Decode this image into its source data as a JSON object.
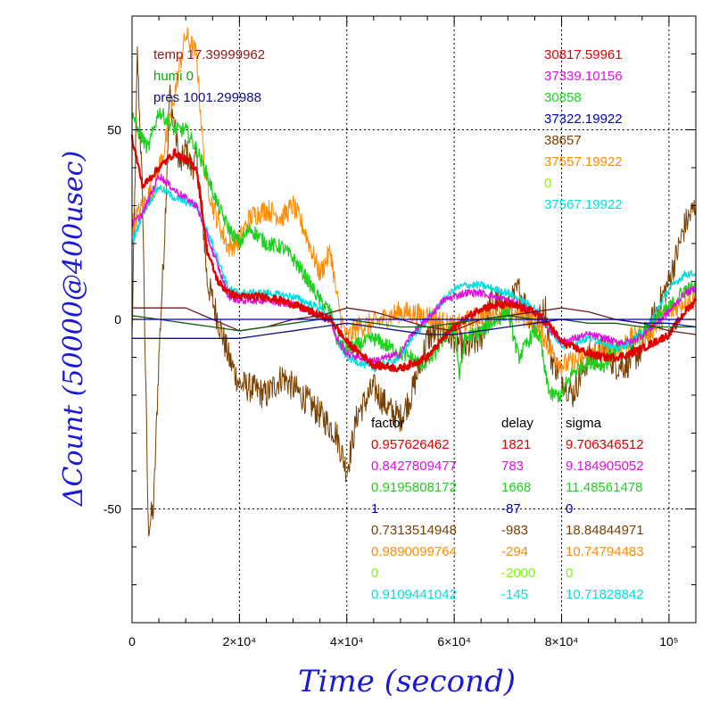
{
  "chart_data": {
    "type": "line",
    "title": "",
    "xlabel": "Time (second)",
    "ylabel": "ΔCount (50000@400usec)",
    "xlim": [
      0,
      105000
    ],
    "ylim": [
      -80,
      80
    ],
    "grid": true,
    "x_ticks": [
      {
        "value": 0,
        "label": "0"
      },
      {
        "value": 20000,
        "label": "2×10⁴"
      },
      {
        "value": 40000,
        "label": "4×10⁴"
      },
      {
        "value": 60000,
        "label": "6×10⁴"
      },
      {
        "value": 80000,
        "label": "8×10⁴"
      },
      {
        "value": 100000,
        "label": "10⁵"
      }
    ],
    "y_ticks": [
      {
        "value": 50,
        "label": "50"
      },
      {
        "value": 0,
        "label": "0"
      },
      {
        "value": -50,
        "label": "-50"
      }
    ],
    "env_labels": [
      {
        "text": "temp 17.39999962",
        "color": "#8b1a1a"
      },
      {
        "text": "humi 0",
        "color": "#10a010"
      },
      {
        "text": "pres 1001.299988",
        "color": "#101080"
      }
    ],
    "right_values": [
      {
        "text": "30817.59961",
        "color": "#e00000"
      },
      {
        "text": "37339.10156",
        "color": "#e010e0"
      },
      {
        "text": "30858",
        "color": "#20d020"
      },
      {
        "text": "37322.19922",
        "color": "#0000c0"
      },
      {
        "text": "38657",
        "color": "#7a4000"
      },
      {
        "text": "37557.19922",
        "color": "#ff8c00"
      },
      {
        "text": "0",
        "color": "#7cfc00"
      },
      {
        "text": "37567.19922",
        "color": "#00e0e0"
      }
    ],
    "table": {
      "headers": [
        "factor",
        "delay",
        "sigma"
      ],
      "rows": [
        {
          "factor": "0.957626462",
          "delay": "1821",
          "sigma": "9.706346512",
          "color": "#e00000"
        },
        {
          "factor": "0.8427809477",
          "delay": "783",
          "sigma": "9.184905052",
          "color": "#e010e0"
        },
        {
          "factor": "0.9195808172",
          "delay": "1668",
          "sigma": "11.48561478",
          "color": "#20d020"
        },
        {
          "factor": "1",
          "delay": "-87",
          "sigma": "0",
          "color": "#0000c0"
        },
        {
          "factor": "0.7313514948",
          "delay": "-983",
          "sigma": "18.84844971",
          "color": "#7a4000"
        },
        {
          "factor": "0.9890099764",
          "delay": "-294",
          "sigma": "10.74794483",
          "color": "#ff8c00"
        },
        {
          "factor": "0",
          "delay": "-2000",
          "sigma": "0",
          "color": "#7cfc00"
        },
        {
          "factor": "0.9109441042",
          "delay": "-145",
          "sigma": "10.71828842",
          "color": "#00e0e0"
        }
      ]
    },
    "series": [
      {
        "color": "#7a4000",
        "noise": 4,
        "x": [
          0,
          1000,
          2000,
          3000,
          4000,
          5000,
          6000,
          7000,
          8000,
          9000,
          10000,
          11000,
          12000,
          13000,
          14000,
          15000,
          17000,
          18000,
          20000,
          22000,
          25000,
          28000,
          30000,
          33000,
          35000,
          38000,
          40000,
          42000,
          45000,
          48000,
          50000,
          52000,
          55000,
          57000,
          60000,
          62000,
          65000,
          67000,
          70000,
          72000,
          75000,
          77000,
          78000,
          80000,
          82000,
          85000,
          88000,
          90000,
          92000,
          95000,
          97000,
          100000,
          103000,
          105000
        ],
        "y": [
          -5,
          70,
          30,
          -55,
          -50,
          -10,
          20,
          60,
          50,
          40,
          45,
          40,
          42,
          30,
          10,
          5,
          -5,
          -10,
          -17,
          -18,
          -20,
          -15,
          -18,
          -22,
          -25,
          -30,
          -40,
          -25,
          -18,
          -24,
          -26,
          -20,
          -5,
          -3,
          -5,
          -8,
          -5,
          5,
          3,
          8,
          -2,
          3,
          -10,
          -15,
          -20,
          -10,
          -8,
          -12,
          -12,
          -8,
          0,
          10,
          25,
          30
        ]
      },
      {
        "color": "#ff8c00",
        "noise": 3,
        "x": [
          0,
          2000,
          4000,
          6000,
          8000,
          10000,
          12000,
          13500,
          15000,
          17000,
          18000,
          20000,
          22000,
          25000,
          28000,
          30000,
          32000,
          35000,
          36000,
          37000,
          38000,
          39000,
          40000,
          42000,
          45000,
          48000,
          50000,
          55000,
          60000,
          65000,
          70000,
          75000,
          78000,
          80000,
          83000,
          85000,
          88000,
          90000,
          93000,
          96000,
          100000,
          103000,
          105000
        ],
        "y": [
          25,
          30,
          35,
          45,
          60,
          75,
          70,
          40,
          30,
          22,
          19,
          21,
          27,
          29,
          27,
          30,
          24,
          12,
          15,
          18,
          7,
          0,
          -5,
          -2,
          -1,
          1,
          2,
          1,
          -2,
          1,
          2,
          0,
          -8,
          -12,
          -11,
          -10,
          -8,
          -8,
          -5,
          -4,
          2,
          5,
          5
        ]
      },
      {
        "color": "#20d020",
        "noise": 2,
        "x": [
          0,
          1000,
          3000,
          5000,
          8000,
          10000,
          12000,
          14000,
          16000,
          18000,
          20000,
          22000,
          25000,
          28000,
          30000,
          32000,
          35000,
          37000,
          38000,
          40000,
          45000,
          50000,
          52000,
          54000,
          56000,
          58000,
          60000,
          61000,
          62000,
          65000,
          68000,
          70000,
          72000,
          75000,
          76000,
          77000,
          78000,
          80000,
          82000,
          85000,
          88000,
          90000,
          93000,
          96000,
          100000,
          103000,
          105000
        ],
        "y": [
          55,
          50,
          45,
          55,
          50,
          50,
          45,
          38,
          30,
          24,
          20,
          24,
          20,
          19,
          16,
          12,
          5,
          2,
          -5,
          -8,
          -5,
          -9,
          -10,
          -12,
          -10,
          -5,
          -2,
          -15,
          -5,
          -3,
          0,
          2,
          -10,
          -3,
          -5,
          -15,
          -20,
          -20,
          -14,
          -11,
          -12,
          -8,
          -6,
          -2,
          3,
          8,
          8
        ]
      },
      {
        "color": "#00e0e0",
        "noise": 1,
        "x": [
          0,
          2000,
          5000,
          8000,
          12000,
          15000,
          18000,
          20000,
          25000,
          30000,
          35000,
          37000,
          38000,
          40000,
          45000,
          50000,
          52000,
          55000,
          58000,
          60000,
          62000,
          65000,
          70000,
          75000,
          78000,
          80000,
          85000,
          88000,
          90000,
          93000,
          96000,
          100000,
          103000,
          105000
        ],
        "y": [
          20,
          28,
          35,
          32,
          30,
          20,
          8,
          7,
          7,
          6,
          3,
          0,
          -5,
          -10,
          -13,
          -10,
          -5,
          0,
          5,
          8,
          9,
          9,
          7,
          3,
          -3,
          -7,
          -5,
          -6,
          -8,
          -6,
          -2,
          8,
          12,
          12
        ]
      },
      {
        "color": "#e010e0",
        "noise": 1,
        "x": [
          0,
          2000,
          5000,
          8000,
          12000,
          15000,
          18000,
          20000,
          25000,
          30000,
          35000,
          37000,
          38000,
          40000,
          45000,
          50000,
          52000,
          55000,
          58000,
          60000,
          62000,
          65000,
          70000,
          75000,
          78000,
          80000,
          85000,
          88000,
          90000,
          93000,
          96000,
          100000,
          103000,
          105000
        ],
        "y": [
          25,
          28,
          38,
          34,
          30,
          18,
          6,
          5,
          5,
          4,
          1,
          0,
          -5,
          -9,
          -11,
          -9,
          -4,
          0,
          5,
          6,
          7,
          7,
          5,
          2,
          -3,
          -6,
          -4,
          -5,
          -6,
          -6,
          -3,
          2,
          7,
          8
        ]
      },
      {
        "color": "#e00000",
        "noise": 1,
        "x": [
          0,
          2000,
          5000,
          8000,
          12000,
          14000,
          16000,
          18000,
          20000,
          25000,
          30000,
          35000,
          37000,
          38000,
          40000,
          45000,
          50000,
          55000,
          58000,
          60000,
          65000,
          70000,
          75000,
          78000,
          80000,
          85000,
          88000,
          90000,
          93000,
          96000,
          100000,
          103000,
          105000
        ],
        "y": [
          48,
          35,
          40,
          44,
          40,
          18,
          10,
          7,
          6,
          6,
          4,
          1,
          0,
          -2,
          -6,
          -12,
          -13,
          -10,
          -5,
          -2,
          3,
          4,
          2,
          -2,
          -6,
          -9,
          -10,
          -10,
          -9,
          -7,
          -4,
          2,
          5
        ]
      },
      {
        "color": "#6b1a1a",
        "noise": 0,
        "x": [
          0,
          5000,
          10000,
          15000,
          20000,
          25000,
          30000,
          35000,
          40000,
          45000,
          50000,
          55000,
          60000,
          65000,
          70000,
          75000,
          80000,
          85000,
          90000,
          95000,
          100000,
          105000
        ],
        "y": [
          3,
          3,
          3,
          0,
          -3,
          -2,
          0,
          1,
          3,
          2,
          0,
          -2,
          -3,
          0,
          1,
          2,
          3,
          2,
          0,
          -1,
          -3,
          -4
        ]
      },
      {
        "color": "#106010",
        "noise": 0,
        "x": [
          0,
          5000,
          10000,
          15000,
          20000,
          25000,
          30000,
          35000,
          40000,
          45000,
          50000,
          55000,
          60000,
          65000,
          70000,
          75000,
          80000,
          85000,
          90000,
          95000,
          100000,
          105000
        ],
        "y": [
          1,
          0,
          -1,
          -2,
          -3,
          -2,
          -1,
          0,
          0,
          -1,
          -2,
          -2,
          -1,
          0,
          1,
          0,
          0,
          -1,
          -1,
          -2,
          -2,
          -2
        ]
      },
      {
        "color": "#101080",
        "noise": 0,
        "x": [
          0,
          5000,
          10000,
          15000,
          20000,
          25000,
          30000,
          35000,
          40000,
          45000,
          50000,
          55000,
          60000,
          65000,
          70000,
          75000,
          80000,
          85000,
          90000,
          95000,
          100000,
          105000
        ],
        "y": [
          -5,
          -5,
          -5,
          -5,
          -5,
          -4,
          -3,
          -2,
          -1,
          -2,
          -3,
          -4,
          -4,
          -3,
          -2,
          -1,
          0,
          0,
          0,
          -1,
          -1,
          -2
        ]
      },
      {
        "color": "#0000c0",
        "noise": 0,
        "x": [
          0,
          105000
        ],
        "y": [
          0,
          0
        ]
      }
    ]
  }
}
